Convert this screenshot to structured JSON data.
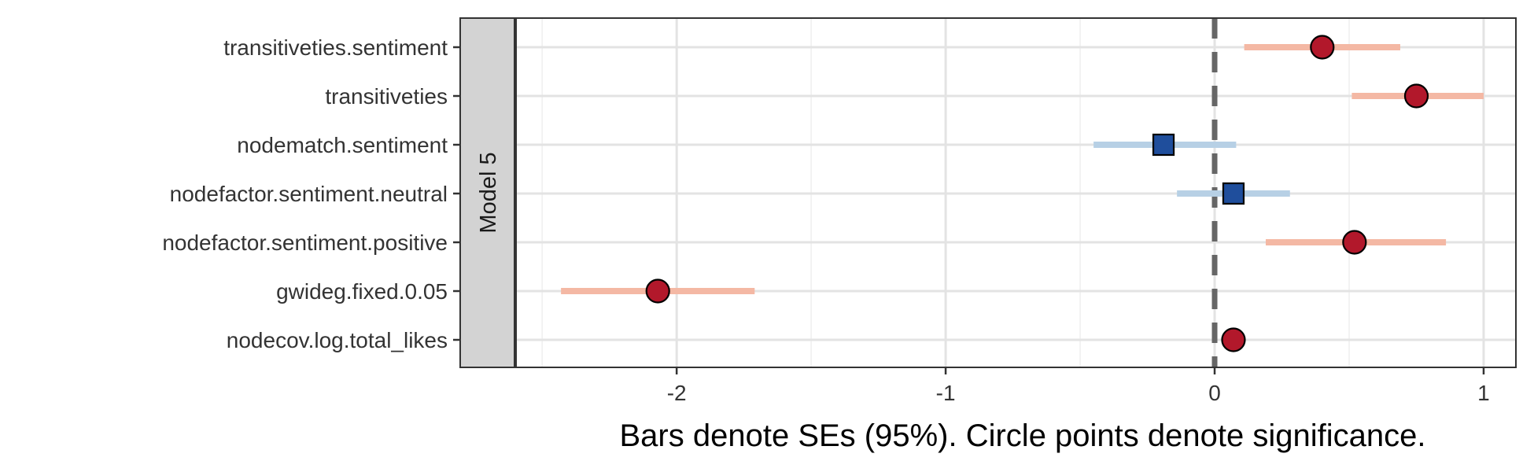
{
  "chart_data": {
    "type": "scatter",
    "subtype": "coefficient-plot",
    "title": "",
    "xlabel": "Bars denote SEs (95%). Circle points denote significance.",
    "ylabel": "",
    "facet_label": "Model 5",
    "xlim": [
      -2.6,
      1.12
    ],
    "x_ticks": [
      {
        "value": -2,
        "label": "-2"
      },
      {
        "value": -1,
        "label": "-1"
      },
      {
        "value": 0,
        "label": "0"
      },
      {
        "value": 1,
        "label": "1"
      }
    ],
    "grid": true,
    "reference_line": {
      "x": 0,
      "style": "dashed"
    },
    "terms": [
      {
        "label": "transitiveties.sentiment",
        "estimate": 0.4,
        "ci_low": 0.11,
        "ci_high": 0.69,
        "significant": true
      },
      {
        "label": "transitiveties",
        "estimate": 0.75,
        "ci_low": 0.51,
        "ci_high": 1.0,
        "significant": true
      },
      {
        "label": "nodematch.sentiment",
        "estimate": -0.19,
        "ci_low": -0.45,
        "ci_high": 0.08,
        "significant": false
      },
      {
        "label": "nodefactor.sentiment.neutral",
        "estimate": 0.07,
        "ci_low": -0.14,
        "ci_high": 0.28,
        "significant": false
      },
      {
        "label": "nodefactor.sentiment.positive",
        "estimate": 0.52,
        "ci_low": 0.19,
        "ci_high": 0.86,
        "significant": true
      },
      {
        "label": "gwideg.fixed.0.05",
        "estimate": -2.07,
        "ci_low": -2.43,
        "ci_high": -1.71,
        "significant": true
      },
      {
        "label": "nodecov.log.total_likes",
        "estimate": 0.07,
        "ci_low": 0.05,
        "ci_high": 0.09,
        "significant": true
      }
    ],
    "colors": {
      "significant_point": "#b2182b",
      "significant_bar": "#f4b8a4",
      "nonsignificant_point": "#1f4e9c",
      "nonsignificant_bar": "#b7d0e5",
      "reference_line": "#666666",
      "grid_major": "#e3e3e3",
      "grid_minor": "#efefef",
      "panel_border": "#333333",
      "strip_fill": "#d3d3d3"
    }
  }
}
